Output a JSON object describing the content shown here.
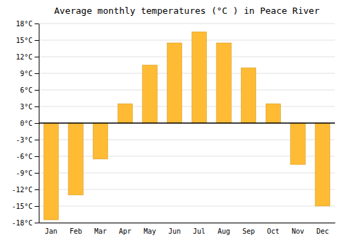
{
  "chart_data": {
    "type": "bar",
    "title": "Average monthly temperatures (°C ) in Peace River",
    "categories": [
      "Jan",
      "Feb",
      "Mar",
      "Apr",
      "May",
      "Jun",
      "Jul",
      "Aug",
      "Sep",
      "Oct",
      "Nov",
      "Dec"
    ],
    "values": [
      -17.5,
      -13.0,
      -6.5,
      3.5,
      10.5,
      14.5,
      16.5,
      14.5,
      10.0,
      3.5,
      -7.5,
      -15.0
    ],
    "color": "#FFBB33",
    "ylim": [
      -18,
      18
    ],
    "yticks": [
      {
        "value": -18,
        "label": "-18°C"
      },
      {
        "value": -15,
        "label": "-15°C"
      },
      {
        "value": -12,
        "label": "-12°C"
      },
      {
        "value": -9,
        "label": "-9°C"
      },
      {
        "value": -6,
        "label": "-6°C"
      },
      {
        "value": -3,
        "label": "-3°C"
      },
      {
        "value": 0,
        "label": "0°C"
      },
      {
        "value": 3,
        "label": "3°C"
      },
      {
        "value": 6,
        "label": "6°C"
      },
      {
        "value": 9,
        "label": "9°C"
      },
      {
        "value": 12,
        "label": "12°C"
      },
      {
        "value": 15,
        "label": "15°C"
      },
      {
        "value": 18,
        "label": "18°C"
      }
    ],
    "grid": true
  }
}
